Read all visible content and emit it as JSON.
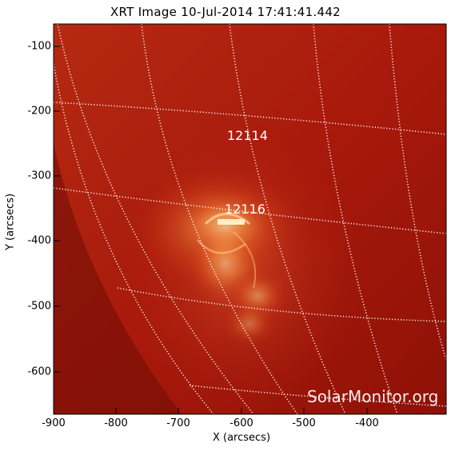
{
  "title": "XRT Image 10-Jul-2014 17:41:41.442",
  "xlabel": "X (arcsecs)",
  "ylabel": "Y (arcsecs)",
  "x_ticks": [
    "-900",
    "-800",
    "-700",
    "-600",
    "-500",
    "-400"
  ],
  "y_ticks": [
    "-100",
    "-200",
    "-300",
    "-400",
    "-500",
    "-600"
  ],
  "active_regions": [
    {
      "label": "12114"
    },
    {
      "label": "12116"
    }
  ],
  "watermark": "SolarMonitor.org",
  "colors": {
    "background": "#a8180a",
    "bright": "#ffd27a",
    "grid": "#ffffff"
  }
}
